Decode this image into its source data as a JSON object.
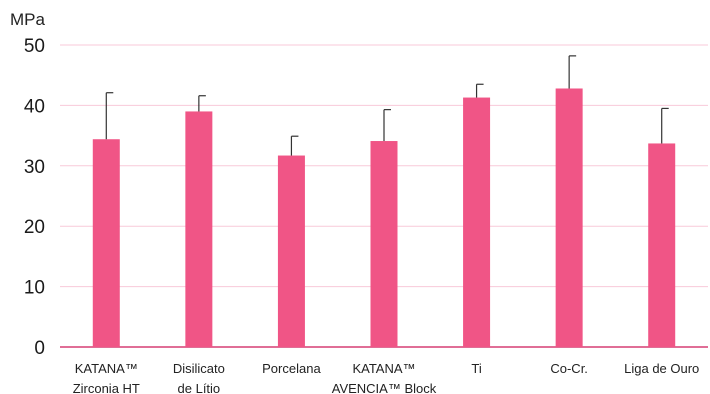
{
  "chart_data": {
    "type": "bar",
    "title": "",
    "unit_label": "MPa",
    "xlabel": "",
    "ylabel": "",
    "ylim": [
      0,
      50
    ],
    "yticks": [
      0,
      10,
      20,
      30,
      40,
      50
    ],
    "grid": true,
    "legend": "none",
    "colors": {
      "bar": "#f05586",
      "grid": "#f8cad9",
      "baseline": "#d63f74",
      "error_bar": "#333333"
    },
    "categories": [
      [
        "KATANA™",
        "Zirconia HT"
      ],
      [
        "Disilicato",
        "de Lítio"
      ],
      [
        "Porcelana"
      ],
      [
        "KATANA™",
        "AVENCIA™ Block"
      ],
      [
        "Ti"
      ],
      [
        "Co-Cr."
      ],
      [
        "Liga de Ouro"
      ]
    ],
    "values": [
      34.4,
      39.0,
      31.7,
      34.1,
      41.3,
      42.8,
      33.7
    ],
    "error_upper": [
      42.1,
      41.6,
      34.9,
      39.3,
      43.5,
      48.2,
      39.5
    ]
  }
}
